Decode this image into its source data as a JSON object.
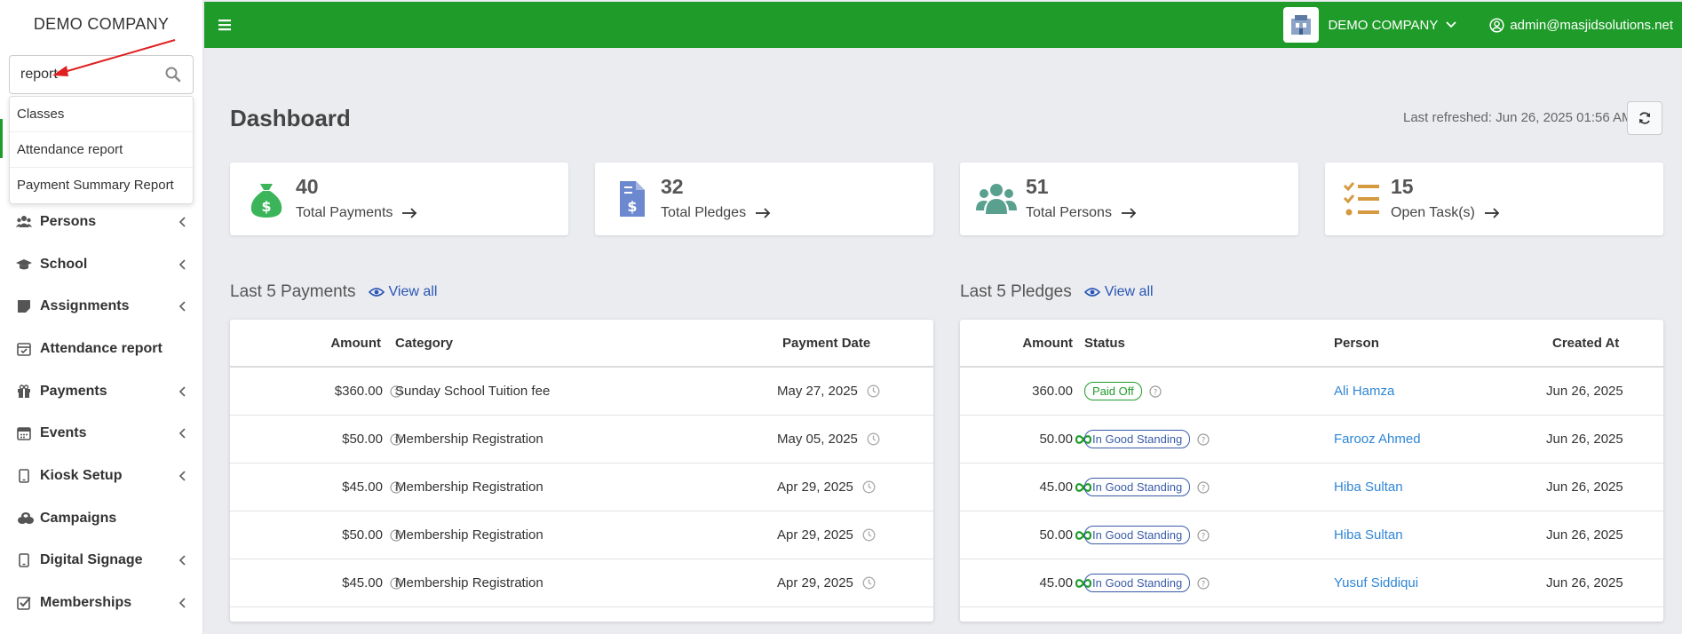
{
  "sidebar": {
    "brand": "DEMO COMPANY",
    "search": {
      "value": "report"
    },
    "dropdown": [
      "Classes",
      "Attendance report",
      "Payment Summary Report"
    ],
    "nav": [
      {
        "label": "Persons",
        "icon": "users-icon",
        "has_chevron": true
      },
      {
        "label": "School",
        "icon": "graduation-cap-icon",
        "has_chevron": true
      },
      {
        "label": "Assignments",
        "icon": "sticky-note-icon",
        "has_chevron": true
      },
      {
        "label": "Attendance report",
        "icon": "calendar-check-icon",
        "has_chevron": false
      },
      {
        "label": "Payments",
        "icon": "gift-icon",
        "has_chevron": true
      },
      {
        "label": "Events",
        "icon": "calendar-icon",
        "has_chevron": true
      },
      {
        "label": "Kiosk Setup",
        "icon": "tablet-icon",
        "has_chevron": true
      },
      {
        "label": "Campaigns",
        "icon": "coins-icon",
        "has_chevron": false
      },
      {
        "label": "Digital Signage",
        "icon": "tablet-icon",
        "has_chevron": true
      },
      {
        "label": "Memberships",
        "icon": "check-square-icon",
        "has_chevron": true
      }
    ]
  },
  "topbar": {
    "org_name": "DEMO COMPANY",
    "user_email": "admin@masjidsolutions.net",
    "accent": "#1f9b29"
  },
  "main": {
    "title": "Dashboard",
    "last_refreshed": "Last refreshed: Jun 26, 2025 01:56 AM",
    "stats": [
      {
        "value": "40",
        "label": "Total Payments",
        "icon": "money-bag-icon",
        "color": "#3cb55a"
      },
      {
        "value": "32",
        "label": "Total Pledges",
        "icon": "invoice-dollar-icon",
        "color": "#6c88cf"
      },
      {
        "value": "51",
        "label": "Total Persons",
        "icon": "users-icon",
        "color": "#5aa08f"
      },
      {
        "value": "15",
        "label": "Open Task(s)",
        "icon": "tasks-icon",
        "color": "#d59a3f"
      }
    ],
    "payments": {
      "title": "Last 5 Payments",
      "view_all": "View all",
      "columns": [
        "Amount",
        "Category",
        "Payment Date"
      ],
      "rows": [
        {
          "amount": "$360.00",
          "category": "Sunday School Tuition fee",
          "date": "May 27, 2025"
        },
        {
          "amount": "$50.00",
          "category": "Membership Registration",
          "date": "May 05, 2025"
        },
        {
          "amount": "$45.00",
          "category": "Membership Registration",
          "date": "Apr 29, 2025"
        },
        {
          "amount": "$50.00",
          "category": "Membership Registration",
          "date": "Apr 29, 2025"
        },
        {
          "amount": "$45.00",
          "category": "Membership Registration",
          "date": "Apr 29, 2025"
        }
      ]
    },
    "pledges": {
      "title": "Last 5 Pledges",
      "view_all": "View all",
      "columns": [
        "Amount",
        "Status",
        "Person",
        "Created At"
      ],
      "rows": [
        {
          "amount": "360.00",
          "recurring": false,
          "status": "Paid Off",
          "person": "Ali Hamza",
          "created": "Jun 26, 2025"
        },
        {
          "amount": "50.00",
          "recurring": true,
          "status": "In Good Standing",
          "person": "Farooz Ahmed",
          "created": "Jun 26, 2025"
        },
        {
          "amount": "45.00",
          "recurring": true,
          "status": "In Good Standing",
          "person": "Hiba Sultan",
          "created": "Jun 26, 2025"
        },
        {
          "amount": "50.00",
          "recurring": true,
          "status": "In Good Standing",
          "person": "Hiba Sultan",
          "created": "Jun 26, 2025"
        },
        {
          "amount": "45.00",
          "recurring": true,
          "status": "In Good Standing",
          "person": "Yusuf Siddiqui",
          "created": "Jun 26, 2025"
        }
      ]
    }
  }
}
